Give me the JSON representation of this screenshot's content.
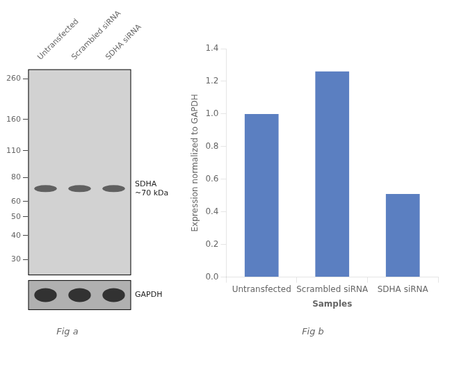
{
  "chart_data": [
    {
      "type": "western_blot",
      "categories": [
        "Untransfected",
        "Scrambled siRNA",
        "SDHA siRNA"
      ],
      "ylim": [
        25,
        290
      ],
      "yticks": [
        260,
        160,
        110,
        80,
        60,
        50,
        40,
        30
      ],
      "log": "y",
      "grid": false,
      "colors": [
        "#d2d2d2",
        "#b0b0b0"
      ],
      "annotations": [
        {
          "text": "SDHA\n~70 kDa",
          "y": 70,
          "color": "#3a3a3a"
        },
        {
          "text": "GAPDH",
          "color": "#202020"
        }
      ],
      "subtitle": "Fig a"
    },
    {
      "type": "bar",
      "categories": [
        "Untransfected",
        "Scrambled siRNA",
        "SDHA siRNA"
      ],
      "values": [
        1.0,
        1.26,
        0.51
      ],
      "color": "#5b7fc1",
      "xlabel": "Samples",
      "ylabel": "Expression normalized to GAPDH",
      "ylim": [
        0,
        1.4
      ],
      "yticks": [
        {
          "value": 0,
          "label": "0.0"
        },
        0.2,
        0.4,
        0.6,
        0.8,
        {
          "value": 1.0,
          "label": "1.0"
        },
        0.2,
        1.2,
        1.4
      ],
      "grid": false,
      "subtitle": "Fig b"
    }
  ]
}
